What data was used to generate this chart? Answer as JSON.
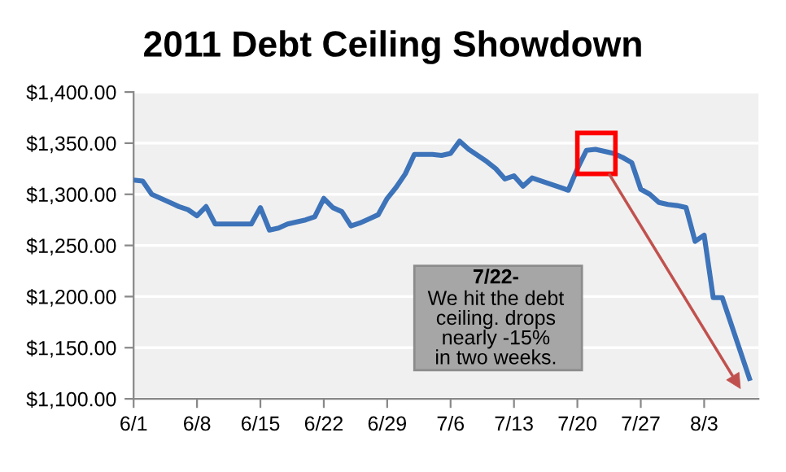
{
  "chart_data": {
    "type": "line",
    "title": "2011 Debt Ceiling Showdown",
    "x": [
      "2011-06-01",
      "2011-06-02",
      "2011-06-03",
      "2011-06-04",
      "2011-06-05",
      "2011-06-06",
      "2011-06-07",
      "2011-06-08",
      "2011-06-09",
      "2011-06-10",
      "2011-06-11",
      "2011-06-12",
      "2011-06-13",
      "2011-06-14",
      "2011-06-15",
      "2011-06-16",
      "2011-06-17",
      "2011-06-18",
      "2011-06-19",
      "2011-06-20",
      "2011-06-21",
      "2011-06-22",
      "2011-06-23",
      "2011-06-24",
      "2011-06-25",
      "2011-06-26",
      "2011-06-27",
      "2011-06-28",
      "2011-06-29",
      "2011-06-30",
      "2011-07-01",
      "2011-07-02",
      "2011-07-03",
      "2011-07-04",
      "2011-07-05",
      "2011-07-06",
      "2011-07-07",
      "2011-07-08",
      "2011-07-09",
      "2011-07-10",
      "2011-07-11",
      "2011-07-12",
      "2011-07-13",
      "2011-07-14",
      "2011-07-15",
      "2011-07-16",
      "2011-07-17",
      "2011-07-18",
      "2011-07-19",
      "2011-07-20",
      "2011-07-21",
      "2011-07-22",
      "2011-07-23",
      "2011-07-24",
      "2011-07-25",
      "2011-07-26",
      "2011-07-27",
      "2011-07-28",
      "2011-07-29",
      "2011-07-30",
      "2011-07-31",
      "2011-08-01",
      "2011-08-02",
      "2011-08-03",
      "2011-08-04",
      "2011-08-05",
      "2011-08-08"
    ],
    "series": [
      {
        "color": "#3d73b9",
        "values": [
          1314,
          1313,
          1300,
          1296,
          1292,
          1288,
          1285,
          1279,
          1288,
          1271,
          1271,
          1271,
          1271,
          1271,
          1287,
          1265,
          1267,
          1271,
          1273,
          1275,
          1278,
          1296,
          1287,
          1283,
          1269,
          1272,
          1276,
          1280,
          1296,
          1307,
          1320,
          1339,
          1339,
          1339,
          1338,
          1340,
          1352,
          1344,
          1338,
          1332,
          1325,
          1315,
          1318,
          1308,
          1316,
          1313,
          1310,
          1307,
          1304,
          1325,
          1343,
          1344,
          1342,
          1340,
          1336,
          1331,
          1305,
          1300,
          1292,
          1290,
          1289,
          1287,
          1254,
          1260,
          1199,
          1199,
          1120
        ]
      }
    ],
    "xlim": [
      "2011-06-01",
      "2011-08-09"
    ],
    "xticks": [
      {
        "value": "2011-06-01",
        "label": "6/1"
      },
      {
        "value": "2011-06-08",
        "label": "6/8"
      },
      {
        "value": "2011-06-15",
        "label": "6/15"
      },
      {
        "value": "2011-06-22",
        "label": "6/22"
      },
      {
        "value": "2011-06-29",
        "label": "6/29"
      },
      {
        "value": "2011-07-06",
        "label": "7/6"
      },
      {
        "value": "2011-07-13",
        "label": "7/13"
      },
      {
        "value": "2011-07-20",
        "label": "7/20"
      },
      {
        "value": "2011-07-27",
        "label": "7/27"
      },
      {
        "value": "2011-08-03",
        "label": "8/3"
      }
    ],
    "ylim": [
      1100,
      1400
    ],
    "yticks": [
      {
        "value": 1100,
        "label": "$1,100.00"
      },
      {
        "value": 1150,
        "label": "$1,150.00"
      },
      {
        "value": 1200,
        "label": "$1,200.00"
      },
      {
        "value": 1250,
        "label": "$1,250.00"
      },
      {
        "value": 1300,
        "label": "$1,300.00"
      },
      {
        "value": 1350,
        "label": "$1,350.00"
      },
      {
        "value": 1400,
        "label": "$1,400.00"
      }
    ],
    "grid": "y",
    "marker": "none",
    "line_style": "solid",
    "annotations": [
      "7/22-",
      "We hit the debt\nceiling. drops\nnearly -15%\nin two weeks."
    ]
  }
}
